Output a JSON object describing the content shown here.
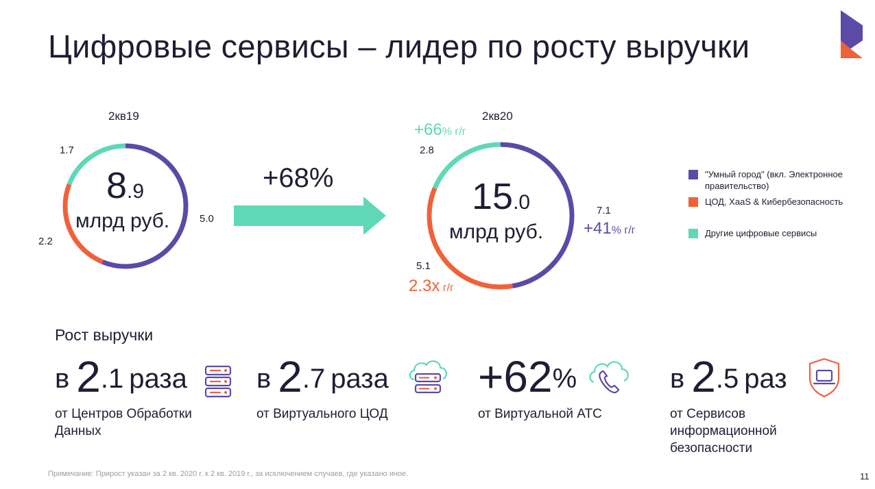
{
  "header": {
    "title": "Цифровые сервисы – лидер по росту выручки"
  },
  "colors": {
    "purple": "#5b4aa6",
    "orange": "#f0613a",
    "teal": "#5fd8b8",
    "text": "#1f1d33",
    "muted": "#9a9aa6"
  },
  "chart_data": [
    {
      "type": "donut",
      "period": "2кв19",
      "total_int": "8",
      "total_dec": ".9",
      "unit": "млрд руб.",
      "slices": [
        {
          "series": "smart_city",
          "value": 5.0,
          "label": "5.0"
        },
        {
          "series": "dc",
          "value": 2.2,
          "label": "2.2"
        },
        {
          "series": "other",
          "value": 1.7,
          "label": "1.7"
        }
      ]
    },
    {
      "type": "donut",
      "period": "2кв20",
      "total_int": "15",
      "total_dec": ".0",
      "unit": "млрд руб.",
      "slices": [
        {
          "series": "smart_city",
          "value": 7.1,
          "label": "7.1",
          "growth_big": "+41",
          "growth_small": "% г/г"
        },
        {
          "series": "dc",
          "value": 5.1,
          "label": "5.1",
          "growth_big": "2.3x",
          "growth_small": " г/г"
        },
        {
          "series": "other",
          "value": 2.8,
          "label": "2.8",
          "growth_big": "+66",
          "growth_small": "% г/г"
        }
      ]
    }
  ],
  "arrow": {
    "label": "+68%"
  },
  "legend": [
    {
      "series": "smart_city",
      "label": "\"Умный город\" (вкл. Электронное правительство)"
    },
    {
      "series": "dc",
      "label": "ЦОД, XaaS & Кибербезопасность"
    },
    {
      "series": "other",
      "label": "Другие цифровые сервисы"
    }
  ],
  "growth_section": {
    "heading": "Рост выручки",
    "stats": [
      {
        "prefix": "в",
        "num_int": "2",
        "num_dec": ".1",
        "suffix": "раза",
        "desc": "от Центров Обработки Данных",
        "icon": "server-icon"
      },
      {
        "prefix": "в",
        "num_int": "2",
        "num_dec": ".7",
        "suffix": "раза",
        "desc": "от Виртуального ЦОД",
        "icon": "cloud-server-icon"
      },
      {
        "prefix": "",
        "num_int": "+62",
        "num_dec": "%",
        "suffix": "",
        "desc": "от Виртуальной АТС",
        "icon": "cloud-phone-icon"
      },
      {
        "prefix": "в",
        "num_int": "2",
        "num_dec": ".5",
        "suffix": "раз",
        "desc": "от Сервисов информационной безопасности",
        "icon": "shield-laptop-icon"
      }
    ]
  },
  "footnote": "Примечание: Прирост указан за 2 кв. 2020 г. к 2 кв. 2019 г., за исключением случаев, где указано иное.",
  "page_number": "11"
}
